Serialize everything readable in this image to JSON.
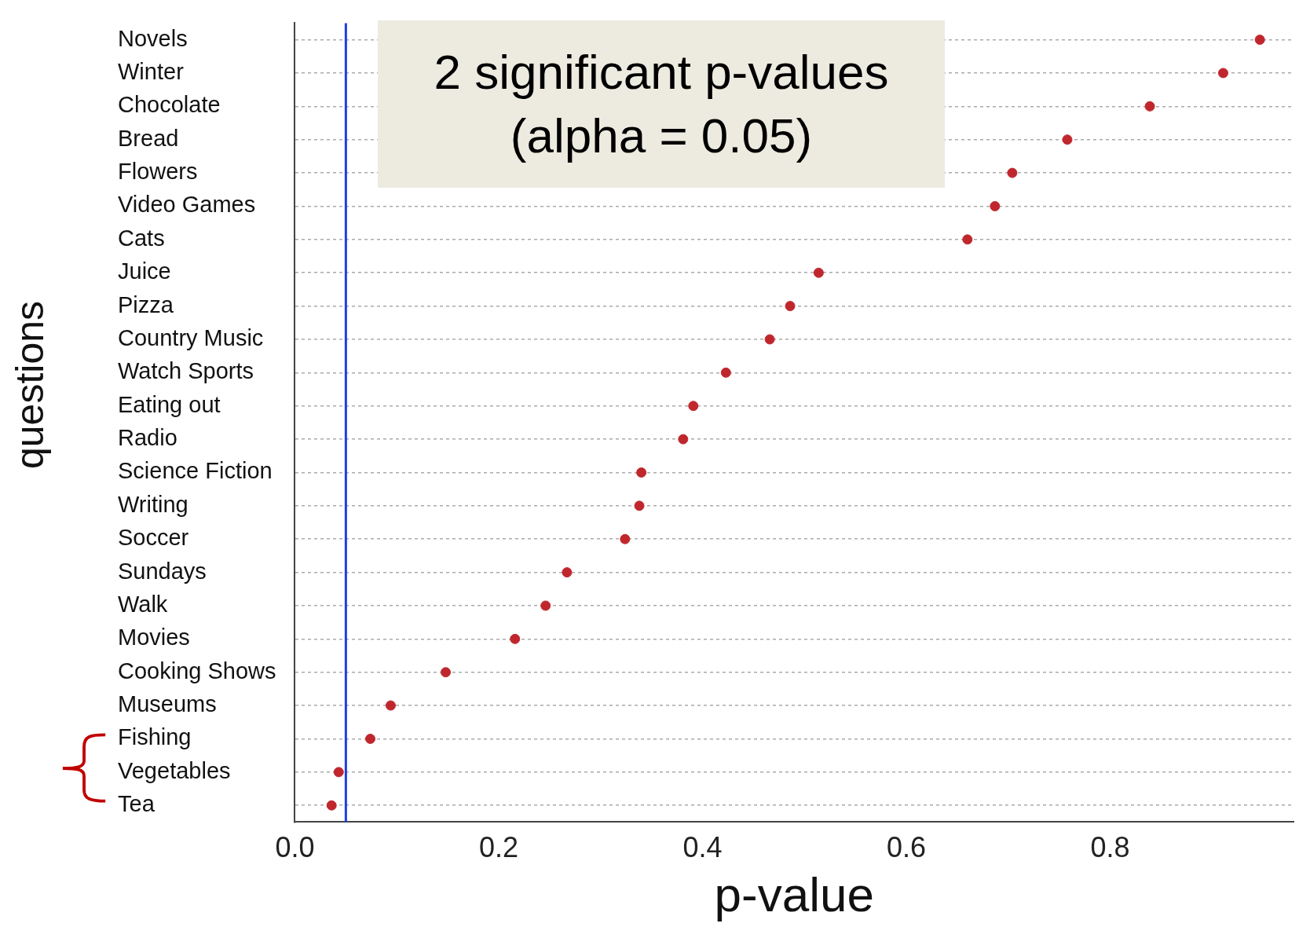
{
  "chart_data": {
    "type": "scatter",
    "xlabel": "p-value",
    "ylabel": "questions",
    "categories": [
      "Novels",
      "Winter",
      "Chocolate",
      "Bread",
      "Flowers",
      "Video Games",
      "Cats",
      "Juice",
      "Pizza",
      "Country Music",
      "Watch Sports",
      "Eating out",
      "Radio",
      "Science Fiction",
      "Writing",
      "Soccer",
      "Sundays",
      "Walk",
      "Movies",
      "Cooking Shows",
      "Museums",
      "Fishing",
      "Vegetables",
      "Tea"
    ],
    "values": [
      0.947,
      0.911,
      0.839,
      0.758,
      0.704,
      0.687,
      0.66,
      0.514,
      0.486,
      0.466,
      0.423,
      0.391,
      0.381,
      0.34,
      0.338,
      0.324,
      0.267,
      0.246,
      0.216,
      0.148,
      0.094,
      0.074,
      0.043,
      0.036
    ],
    "color": "#c0272d",
    "marker": "circle",
    "orientation": "horizontal",
    "xlim": [
      0,
      0.98
    ],
    "xticks": [
      {
        "value": 0,
        "label": "0.0"
      },
      0.2,
      0.4,
      0.6,
      0.8
    ],
    "grid": "y",
    "legend": false,
    "ref_lines": [
      {
        "axis": "x",
        "value": 0.05,
        "color": "#1f3fe0"
      }
    ],
    "annotations": [
      "2 significant p-values (alpha = 0.05)"
    ]
  }
}
